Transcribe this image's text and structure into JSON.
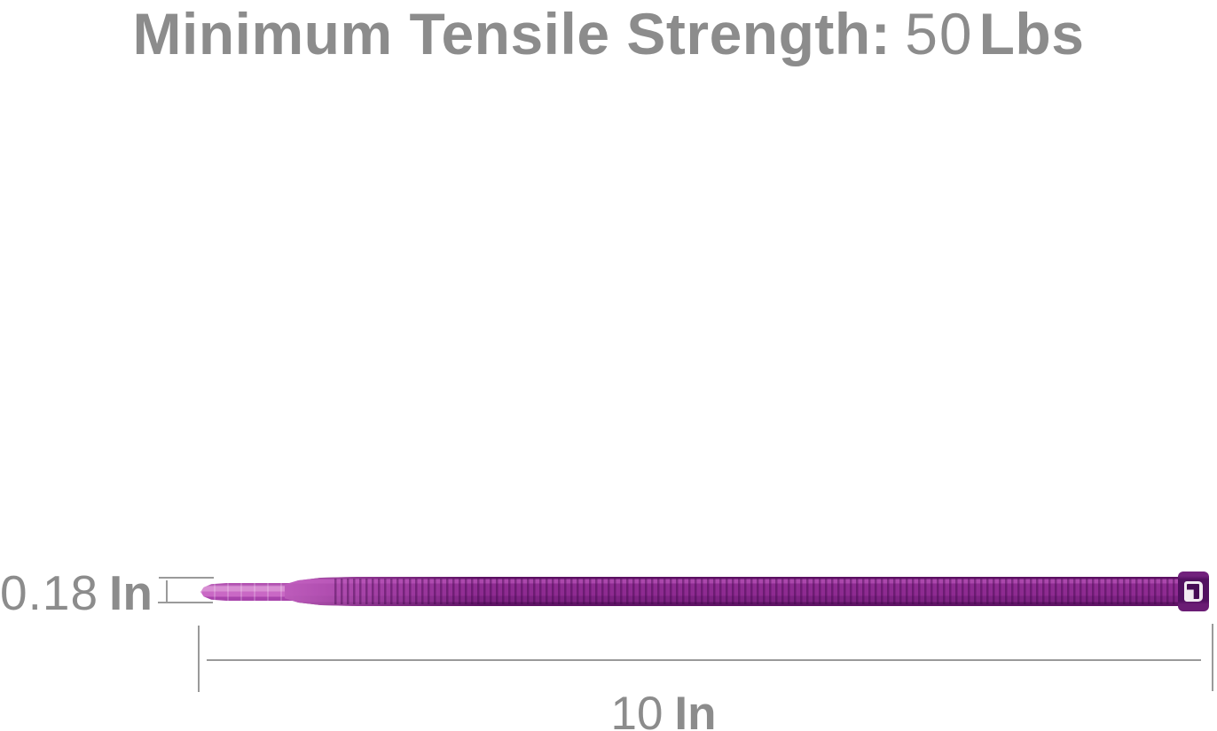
{
  "title": {
    "label": "Minimum Tensile Strength:",
    "value": "50",
    "unit": "Lbs"
  },
  "dimensions": {
    "width": {
      "value": "0.18",
      "unit": "In"
    },
    "length": {
      "value": "10",
      "unit": "In"
    }
  },
  "colors": {
    "background": "#ffffff",
    "text_gray": "#8c8c8c",
    "line_gray": "#9a9a9a",
    "tie_pink": "#c968c5",
    "tie_pink_light": "#d88fd3",
    "tie_purple": "#8e2b91",
    "tie_purple_light": "#ab47ac",
    "tie_tooth": "#470b55",
    "tie_head_purple": "#521060"
  }
}
